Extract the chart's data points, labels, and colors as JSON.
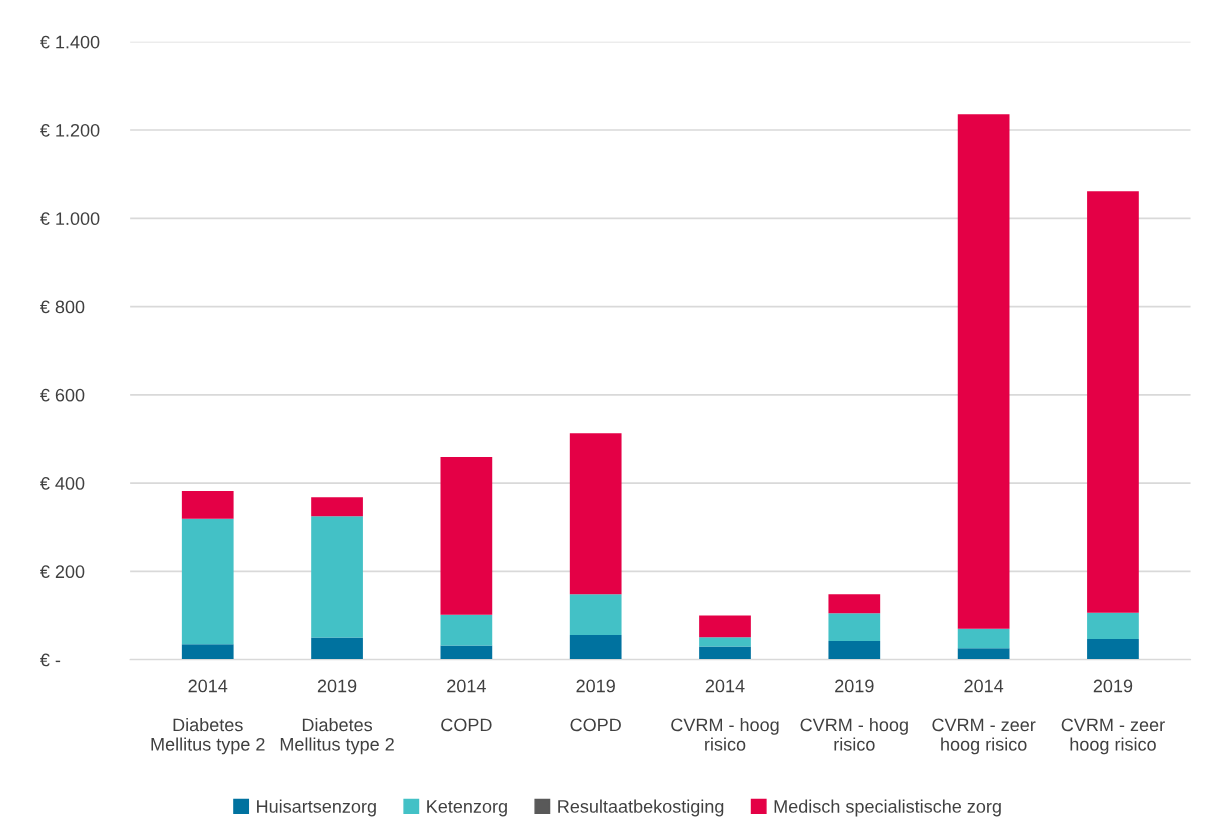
{
  "chart_data": {
    "type": "bar",
    "stacked": true,
    "grid": "y",
    "legend": "bottom",
    "categories": [
      "2014\n\nDiabetes\nMellitus type 2",
      "2019\n\nDiabetes\nMellitus type 2",
      "2014\n\nCOPD",
      "2019\n\nCOPD",
      "2014\n\nCVRM - hoog\nrisico",
      "2019\n\nCVRM - hoog\nrisico",
      "2014\n\nCVRM - zeer\nhoog risico",
      "2019\n\nCVRM - zeer\nhoog risico"
    ],
    "series": [
      {
        "name": "Huisartsenzorg",
        "color": "#00729f",
        "values": [
          35,
          50,
          32,
          56,
          30,
          42,
          26,
          47
        ]
      },
      {
        "name": "Ketenzorg",
        "color": "#43c1c6",
        "values": [
          284,
          275,
          70,
          92,
          21,
          63,
          44,
          59
        ]
      },
      {
        "name": "Resultaatbekostiging",
        "color": "#595959",
        "values": [
          0,
          0,
          0,
          0,
          0,
          0,
          0,
          0
        ]
      },
      {
        "name": "Medisch specialistische zorg",
        "color": "#e40046",
        "values": [
          63,
          43,
          357,
          365,
          49,
          43,
          1166,
          955
        ]
      }
    ],
    "ylim": [
      0,
      1400
    ],
    "yticks": [
      {
        "value": 0,
        "label": "€ -"
      },
      {
        "value": 200,
        "label": "€ 200"
      },
      {
        "value": 400,
        "label": "€ 400"
      },
      {
        "value": 600,
        "label": "€ 600"
      },
      {
        "value": 800,
        "label": "€ 800"
      },
      {
        "value": 1000,
        "label": "€ 1.000"
      },
      {
        "value": 1200,
        "label": "€ 1.200"
      },
      {
        "value": 1400,
        "label": "€ 1.400"
      }
    ]
  }
}
